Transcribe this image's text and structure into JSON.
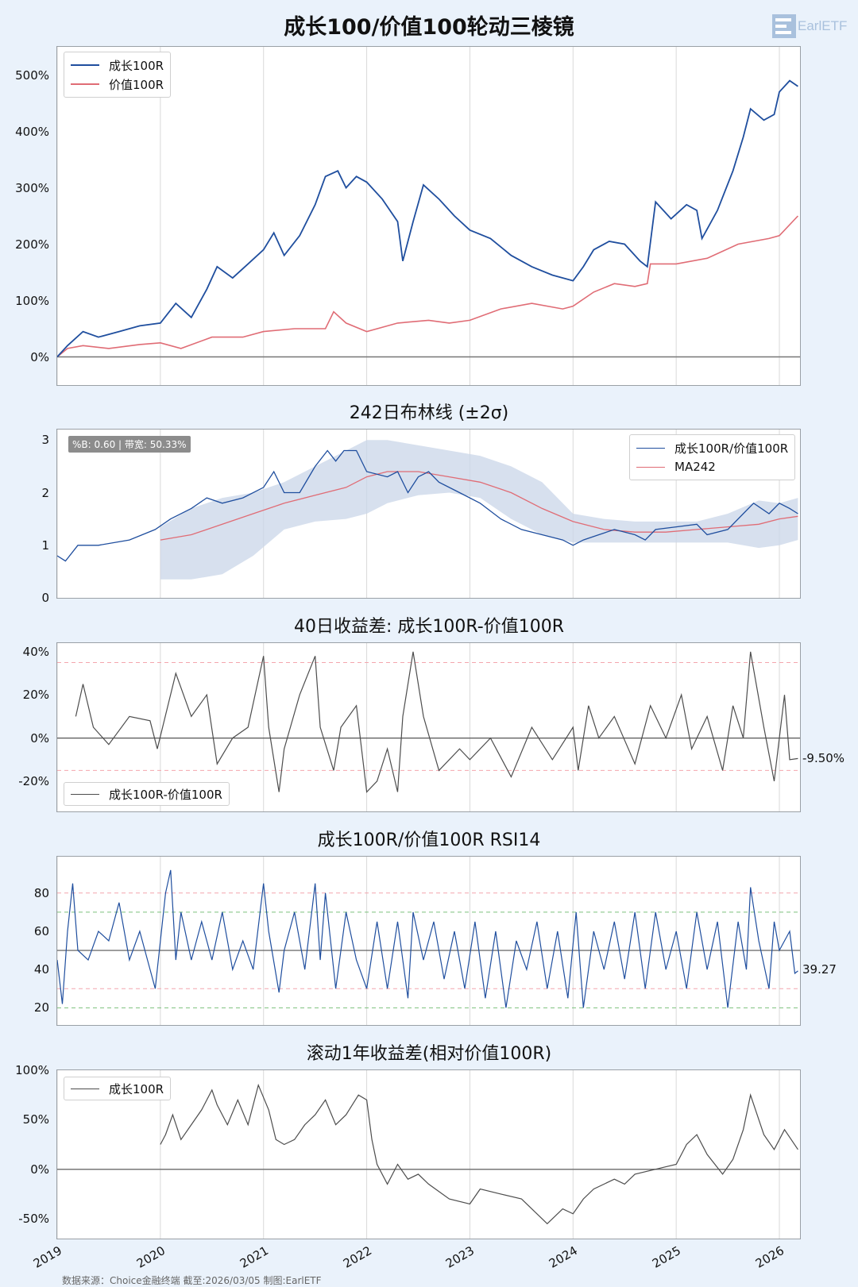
{
  "main_title": "成长100/价值100轮动三棱镜",
  "logo": {
    "text": "EarlETF"
  },
  "footer": "数据来源：Choice金融终端 截至:2026/03/05 制图:EarlETF",
  "x_years": [
    "2019",
    "2020",
    "2021",
    "2022",
    "2023",
    "2024",
    "2025",
    "2026"
  ],
  "colors": {
    "growth": "#1f4e9e",
    "value": "#e06c75",
    "diff": "#4d4d4d",
    "band": "#c9d6e8",
    "grid": "#d9d9d9",
    "red_dash": "#f4a6ad",
    "green_dash": "#7cc17c"
  },
  "chart_data": [
    {
      "type": "line",
      "title": "",
      "ylim": [
        -50,
        550
      ],
      "yticks": [
        "500%",
        "400%",
        "300%",
        "200%",
        "100%",
        "0%"
      ],
      "legend": [
        "成长100R",
        "价值100R"
      ],
      "series": [
        {
          "name": "成长100R",
          "x": [
            2019.0,
            2019.1,
            2019.25,
            2019.4,
            2019.6,
            2019.8,
            2020.0,
            2020.15,
            2020.3,
            2020.45,
            2020.55,
            2020.7,
            2020.85,
            2021.0,
            2021.1,
            2021.2,
            2021.35,
            2021.5,
            2021.6,
            2021.72,
            2021.8,
            2021.9,
            2022.0,
            2022.15,
            2022.3,
            2022.35,
            2022.45,
            2022.55,
            2022.7,
            2022.85,
            2023.0,
            2023.2,
            2023.4,
            2023.6,
            2023.8,
            2024.0,
            2024.1,
            2024.2,
            2024.35,
            2024.5,
            2024.65,
            2024.72,
            2024.8,
            2024.95,
            2025.1,
            2025.2,
            2025.25,
            2025.4,
            2025.55,
            2025.65,
            2025.72,
            2025.85,
            2025.95,
            2026.0,
            2026.1,
            2026.18
          ],
          "values": [
            0,
            20,
            45,
            35,
            45,
            55,
            60,
            95,
            70,
            120,
            160,
            140,
            165,
            190,
            220,
            180,
            215,
            270,
            320,
            330,
            300,
            320,
            310,
            280,
            240,
            170,
            240,
            305,
            280,
            250,
            225,
            210,
            180,
            160,
            145,
            135,
            160,
            190,
            205,
            200,
            170,
            160,
            275,
            245,
            270,
            260,
            210,
            260,
            330,
            390,
            440,
            420,
            430,
            470,
            490,
            480
          ]
        },
        {
          "name": "价值100R",
          "x": [
            2019.0,
            2019.1,
            2019.25,
            2019.5,
            2019.8,
            2020.0,
            2020.2,
            2020.5,
            2020.8,
            2021.0,
            2021.3,
            2021.6,
            2021.68,
            2021.8,
            2022.0,
            2022.3,
            2022.6,
            2022.8,
            2023.0,
            2023.3,
            2023.6,
            2023.9,
            2024.0,
            2024.2,
            2024.4,
            2024.6,
            2024.72,
            2024.75,
            2025.0,
            2025.3,
            2025.6,
            2025.9,
            2026.0,
            2026.18
          ],
          "values": [
            0,
            15,
            20,
            15,
            22,
            25,
            15,
            35,
            35,
            45,
            50,
            50,
            80,
            60,
            45,
            60,
            65,
            60,
            65,
            85,
            95,
            85,
            90,
            115,
            130,
            125,
            130,
            165,
            165,
            175,
            200,
            210,
            215,
            250
          ]
        }
      ]
    },
    {
      "type": "line",
      "title": "242日布林线 (±2σ)",
      "ylim": [
        0,
        3.2
      ],
      "yticks": [
        "3",
        "2",
        "1",
        "0"
      ],
      "badge": "%B: 0.60 | 带宽: 50.33%",
      "legend": [
        "成长100R/价值100R",
        "MA242"
      ],
      "series": [
        {
          "name": "成长100R/价值100R",
          "x": [
            2019.0,
            2019.08,
            2019.2,
            2019.4,
            2019.7,
            2019.95,
            2020.1,
            2020.3,
            2020.45,
            2020.6,
            2020.8,
            2021.0,
            2021.1,
            2021.2,
            2021.35,
            2021.5,
            2021.62,
            2021.7,
            2021.78,
            2021.9,
            2022.0,
            2022.2,
            2022.3,
            2022.4,
            2022.5,
            2022.6,
            2022.7,
            2022.9,
            2023.1,
            2023.3,
            2023.5,
            2023.7,
            2023.9,
            2024.0,
            2024.1,
            2024.25,
            2024.4,
            2024.6,
            2024.7,
            2024.8,
            2025.0,
            2025.2,
            2025.3,
            2025.5,
            2025.65,
            2025.75,
            2025.9,
            2026.0,
            2026.1,
            2026.18
          ],
          "values": [
            0.8,
            0.7,
            1.0,
            1.0,
            1.1,
            1.3,
            1.5,
            1.7,
            1.9,
            1.8,
            1.9,
            2.1,
            2.4,
            2.0,
            2.0,
            2.5,
            2.8,
            2.6,
            2.8,
            2.8,
            2.4,
            2.3,
            2.4,
            2.0,
            2.3,
            2.4,
            2.2,
            2.0,
            1.8,
            1.5,
            1.3,
            1.2,
            1.1,
            1.0,
            1.1,
            1.2,
            1.3,
            1.2,
            1.1,
            1.3,
            1.35,
            1.4,
            1.2,
            1.3,
            1.6,
            1.8,
            1.6,
            1.8,
            1.7,
            1.6
          ]
        },
        {
          "name": "MA242",
          "x": [
            2020.0,
            2020.3,
            2020.6,
            2020.9,
            2021.2,
            2021.5,
            2021.8,
            2022.0,
            2022.2,
            2022.5,
            2022.8,
            2023.1,
            2023.4,
            2023.7,
            2024.0,
            2024.3,
            2024.6,
            2024.9,
            2025.2,
            2025.5,
            2025.8,
            2026.0,
            2026.18
          ],
          "values": [
            1.1,
            1.2,
            1.4,
            1.6,
            1.8,
            1.95,
            2.1,
            2.3,
            2.4,
            2.4,
            2.3,
            2.2,
            2.0,
            1.7,
            1.45,
            1.3,
            1.25,
            1.25,
            1.3,
            1.35,
            1.4,
            1.5,
            1.55
          ]
        },
        {
          "name": "upper",
          "x": [
            2020.0,
            2020.3,
            2020.6,
            2020.9,
            2021.2,
            2021.5,
            2021.8,
            2022.0,
            2022.2,
            2022.5,
            2022.8,
            2023.1,
            2023.4,
            2023.7,
            2024.0,
            2024.3,
            2024.6,
            2024.9,
            2025.2,
            2025.5,
            2025.8,
            2026.0,
            2026.18
          ],
          "values": [
            1.35,
            1.7,
            1.9,
            2.0,
            2.2,
            2.5,
            2.8,
            3.0,
            3.0,
            2.9,
            2.8,
            2.7,
            2.5,
            2.2,
            1.6,
            1.5,
            1.45,
            1.45,
            1.45,
            1.6,
            1.85,
            1.8,
            1.9
          ]
        },
        {
          "name": "lower",
          "x": [
            2020.0,
            2020.3,
            2020.6,
            2020.9,
            2021.2,
            2021.5,
            2021.8,
            2022.0,
            2022.2,
            2022.5,
            2022.8,
            2023.1,
            2023.4,
            2023.7,
            2024.0,
            2024.3,
            2024.6,
            2024.9,
            2025.2,
            2025.5,
            2025.8,
            2026.0,
            2026.18
          ],
          "values": [
            0.35,
            0.35,
            0.45,
            0.8,
            1.3,
            1.45,
            1.5,
            1.6,
            1.8,
            1.95,
            2.0,
            1.9,
            1.5,
            1.2,
            1.05,
            1.05,
            1.05,
            1.05,
            1.05,
            1.05,
            0.95,
            1.0,
            1.1
          ]
        }
      ]
    },
    {
      "type": "line",
      "title": "40日收益差: 成长100R-价值100R",
      "ylim": [
        -34,
        44
      ],
      "yticks": [
        "40%",
        "20%",
        "0%",
        "-20%"
      ],
      "hlines": [
        35,
        -15
      ],
      "end_label": "-9.50%",
      "legend": [
        "成长100R-价值100R"
      ],
      "series": [
        {
          "name": "成长100R-价值100R",
          "x": [
            2019.18,
            2019.25,
            2019.35,
            2019.5,
            2019.7,
            2019.9,
            2019.97,
            2020.15,
            2020.3,
            2020.45,
            2020.55,
            2020.7,
            2020.85,
            2021.0,
            2021.05,
            2021.15,
            2021.2,
            2021.35,
            2021.5,
            2021.55,
            2021.68,
            2021.75,
            2021.9,
            2022.0,
            2022.1,
            2022.2,
            2022.3,
            2022.35,
            2022.45,
            2022.55,
            2022.7,
            2022.9,
            2023.0,
            2023.2,
            2023.4,
            2023.6,
            2023.8,
            2024.0,
            2024.05,
            2024.15,
            2024.25,
            2024.4,
            2024.6,
            2024.75,
            2024.9,
            2025.05,
            2025.15,
            2025.3,
            2025.45,
            2025.55,
            2025.65,
            2025.72,
            2025.85,
            2025.95,
            2026.05,
            2026.1,
            2026.18
          ],
          "values": [
            10,
            25,
            5,
            -3,
            10,
            8,
            -5,
            30,
            10,
            20,
            -12,
            0,
            5,
            38,
            5,
            -25,
            -5,
            20,
            38,
            5,
            -15,
            5,
            15,
            -25,
            -20,
            -5,
            -25,
            10,
            40,
            10,
            -15,
            -5,
            -10,
            0,
            -18,
            5,
            -10,
            5,
            -15,
            15,
            0,
            10,
            -12,
            15,
            0,
            20,
            -5,
            10,
            -15,
            15,
            0,
            40,
            5,
            -20,
            20,
            -10,
            -9.5
          ]
        }
      ]
    },
    {
      "type": "line",
      "title": "成长100R/价值100R RSI14",
      "ylim": [
        11,
        99
      ],
      "yticks": [
        "80",
        "60",
        "40",
        "20"
      ],
      "hlines_red": [
        80,
        30
      ],
      "hlines_green": [
        70,
        20
      ],
      "midline": 50,
      "end_label": "39.27",
      "series": [
        {
          "name": "RSI14",
          "x": [
            2019.0,
            2019.05,
            2019.1,
            2019.15,
            2019.2,
            2019.3,
            2019.4,
            2019.5,
            2019.6,
            2019.7,
            2019.8,
            2019.9,
            2019.95,
            2020.05,
            2020.1,
            2020.15,
            2020.2,
            2020.3,
            2020.4,
            2020.5,
            2020.6,
            2020.7,
            2020.8,
            2020.9,
            2021.0,
            2021.05,
            2021.15,
            2021.2,
            2021.3,
            2021.4,
            2021.5,
            2021.55,
            2021.6,
            2021.7,
            2021.8,
            2021.9,
            2022.0,
            2022.1,
            2022.2,
            2022.3,
            2022.4,
            2022.45,
            2022.55,
            2022.65,
            2022.75,
            2022.85,
            2022.95,
            2023.05,
            2023.15,
            2023.25,
            2023.35,
            2023.45,
            2023.55,
            2023.65,
            2023.75,
            2023.85,
            2023.95,
            2024.03,
            2024.1,
            2024.2,
            2024.3,
            2024.4,
            2024.5,
            2024.6,
            2024.7,
            2024.8,
            2024.9,
            2025.0,
            2025.1,
            2025.2,
            2025.3,
            2025.4,
            2025.5,
            2025.6,
            2025.68,
            2025.72,
            2025.8,
            2025.9,
            2025.95,
            2026.0,
            2026.1,
            2026.15,
            2026.18
          ],
          "values": [
            45,
            22,
            60,
            85,
            50,
            45,
            60,
            55,
            75,
            45,
            60,
            40,
            30,
            80,
            92,
            45,
            70,
            45,
            65,
            45,
            70,
            40,
            55,
            40,
            85,
            60,
            28,
            50,
            70,
            40,
            85,
            45,
            80,
            30,
            70,
            45,
            30,
            65,
            30,
            65,
            25,
            70,
            45,
            65,
            35,
            60,
            30,
            65,
            25,
            60,
            20,
            55,
            40,
            65,
            30,
            60,
            25,
            70,
            20,
            60,
            40,
            65,
            35,
            70,
            30,
            70,
            40,
            60,
            30,
            70,
            40,
            65,
            20,
            65,
            40,
            83,
            55,
            30,
            65,
            50,
            60,
            38,
            39.27
          ]
        }
      ]
    },
    {
      "type": "line",
      "title": "滚动1年收益差(相对价值100R)",
      "ylim": [
        -70,
        100
      ],
      "yticks": [
        "100%",
        "50%",
        "0%",
        "-50%"
      ],
      "legend": [
        "成长100R"
      ],
      "series": [
        {
          "name": "成长100R",
          "x": [
            2020.0,
            2020.05,
            2020.12,
            2020.2,
            2020.3,
            2020.4,
            2020.5,
            2020.55,
            2020.65,
            2020.75,
            2020.85,
            2020.95,
            2021.05,
            2021.12,
            2021.2,
            2021.3,
            2021.4,
            2021.5,
            2021.6,
            2021.7,
            2021.8,
            2021.92,
            2022.0,
            2022.05,
            2022.1,
            2022.2,
            2022.3,
            2022.4,
            2022.5,
            2022.6,
            2022.8,
            2023.0,
            2023.1,
            2023.3,
            2023.5,
            2023.6,
            2023.75,
            2023.9,
            2024.0,
            2024.1,
            2024.2,
            2024.4,
            2024.5,
            2024.6,
            2024.8,
            2025.0,
            2025.1,
            2025.2,
            2025.3,
            2025.45,
            2025.55,
            2025.65,
            2025.72,
            2025.85,
            2025.95,
            2026.05,
            2026.18
          ],
          "values": [
            25,
            35,
            55,
            30,
            45,
            60,
            80,
            65,
            45,
            70,
            45,
            85,
            60,
            30,
            25,
            30,
            45,
            55,
            70,
            45,
            55,
            75,
            70,
            30,
            5,
            -15,
            5,
            -10,
            -5,
            -15,
            -30,
            -35,
            -20,
            -25,
            -30,
            -40,
            -55,
            -40,
            -45,
            -30,
            -20,
            -10,
            -15,
            -5,
            0,
            5,
            25,
            35,
            15,
            -5,
            10,
            40,
            75,
            35,
            20,
            40,
            20
          ]
        }
      ]
    }
  ]
}
